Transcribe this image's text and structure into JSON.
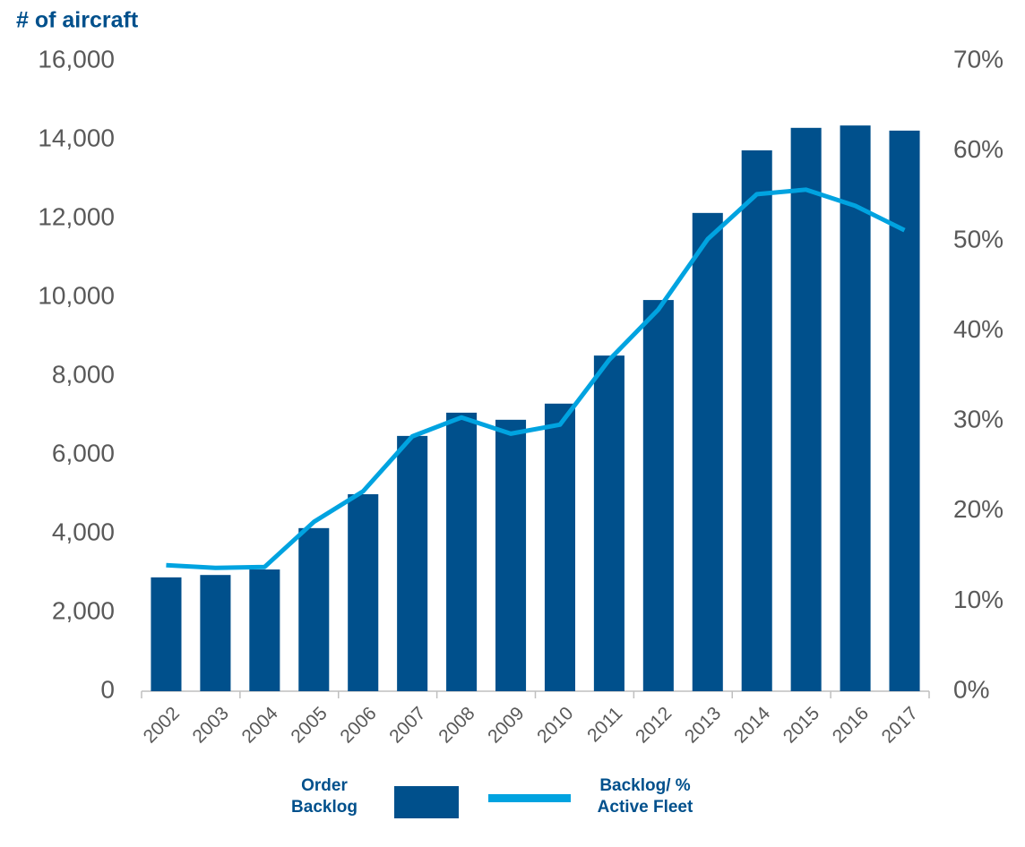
{
  "chart_data": {
    "type": "bar",
    "y_axis_title": "# of aircraft",
    "categories": [
      "2002",
      "2003",
      "2004",
      "2005",
      "2006",
      "2007",
      "2008",
      "2009",
      "2010",
      "2011",
      "2012",
      "2013",
      "2014",
      "2015",
      "2016",
      "2017"
    ],
    "series": [
      {
        "name": "Order Backlog",
        "type": "bar",
        "color": "#00508c",
        "values": [
          2890,
          2950,
          3090,
          4140,
          5000,
          6480,
          7070,
          6890,
          7300,
          8520,
          9930,
          12140,
          13730,
          14300,
          14360,
          14230
        ]
      },
      {
        "name": "Backlog/ % Active Fleet",
        "type": "line",
        "axis": "y2",
        "color": "#00a3e0",
        "values": [
          14.0,
          13.7,
          13.8,
          18.8,
          22.2,
          28.3,
          30.4,
          28.6,
          29.6,
          36.8,
          42.4,
          50.2,
          55.2,
          55.7,
          53.9,
          51.2
        ]
      }
    ],
    "ylim": [
      0,
      16000
    ],
    "yticks": [
      0,
      {
        "value": 2000,
        "label": "2,000"
      },
      {
        "value": 4000,
        "label": "4,000"
      },
      {
        "value": 6000,
        "label": "6,000"
      },
      {
        "value": 8000,
        "label": "8,000"
      },
      {
        "value": 10000,
        "label": "10,000"
      },
      {
        "value": 12000,
        "label": "12,000"
      },
      {
        "value": 14000,
        "label": "14,000"
      },
      {
        "value": 16000,
        "label": "16,000"
      }
    ],
    "y2lim": [
      0,
      70
    ],
    "y2ticks": [
      {
        "value": 0,
        "label": "0%"
      },
      {
        "value": 10,
        "label": "10%"
      },
      {
        "value": 20,
        "label": "20%"
      },
      {
        "value": 30,
        "label": "30%"
      },
      {
        "value": 40,
        "label": "40%"
      },
      {
        "value": 50,
        "label": "50%"
      },
      {
        "value": 60,
        "label": "60%"
      },
      {
        "value": 70,
        "label": "70%"
      }
    ],
    "grid": false,
    "legend": "bottom"
  }
}
